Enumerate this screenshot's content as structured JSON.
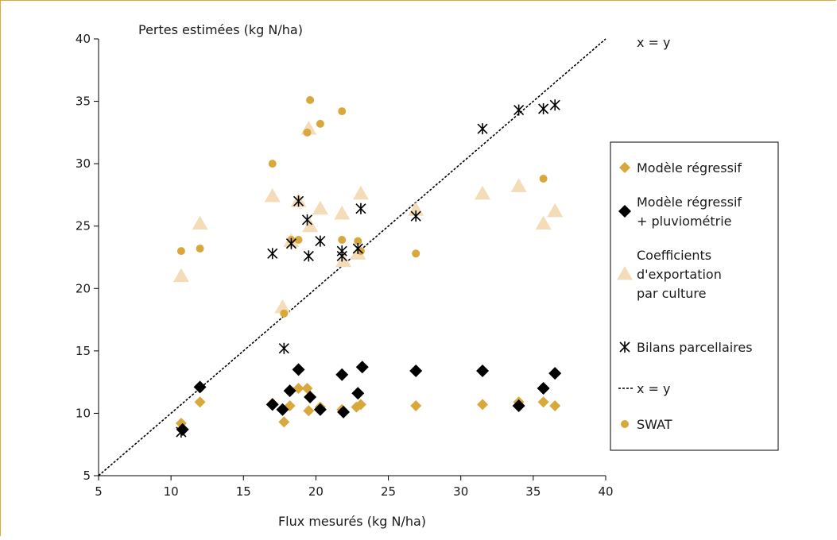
{
  "chart_data": {
    "type": "scatter",
    "ylabel": "Pertes estimées (kg N/ha)",
    "xlabel": "Flux mesurés (kg N/ha)",
    "diag_label": "x = y",
    "xlim": [
      5,
      40
    ],
    "ylim": [
      5,
      40
    ],
    "xticks": [
      5,
      10,
      15,
      20,
      25,
      30,
      35,
      40
    ],
    "yticks": [
      5,
      10,
      15,
      20,
      25,
      30,
      35,
      40
    ],
    "grid": false,
    "legend_position": "right",
    "colors": {
      "frame": "#e0a93a",
      "regressif": "#d9a83c",
      "pluvio": "#000000",
      "coeff": "#f3dcb7",
      "bilans": "#000000",
      "swat": "#d9a83c"
    },
    "series": [
      {
        "key": "regressif",
        "name": "Modèle régressif",
        "marker": "diamond",
        "points": [
          [
            10.7,
            9.2
          ],
          [
            12.0,
            10.9
          ],
          [
            17.0,
            10.8
          ],
          [
            17.8,
            9.3
          ],
          [
            18.2,
            10.6
          ],
          [
            18.8,
            12.0
          ],
          [
            19.4,
            12.0
          ],
          [
            19.5,
            10.2
          ],
          [
            20.3,
            10.5
          ],
          [
            21.8,
            10.3
          ],
          [
            22.8,
            10.5
          ],
          [
            23.1,
            10.7
          ],
          [
            26.9,
            10.6
          ],
          [
            31.5,
            10.7
          ],
          [
            34.0,
            10.9
          ],
          [
            35.7,
            10.9
          ],
          [
            36.5,
            10.6
          ]
        ]
      },
      {
        "key": "pluvio",
        "name": "Modèle régressif + pluviométrie",
        "marker": "diamond-large",
        "points": [
          [
            10.8,
            8.7
          ],
          [
            12.0,
            12.1
          ],
          [
            17.0,
            10.7
          ],
          [
            17.7,
            10.3
          ],
          [
            18.2,
            11.8
          ],
          [
            18.8,
            13.5
          ],
          [
            19.6,
            11.3
          ],
          [
            20.3,
            10.3
          ],
          [
            21.8,
            13.1
          ],
          [
            21.9,
            10.1
          ],
          [
            22.9,
            11.6
          ],
          [
            23.2,
            13.7
          ],
          [
            26.9,
            13.4
          ],
          [
            31.5,
            13.4
          ],
          [
            34.0,
            10.6
          ],
          [
            35.7,
            12.0
          ],
          [
            36.5,
            13.2
          ]
        ]
      },
      {
        "key": "coeff",
        "name": "Coefficients d'exportation par culture",
        "marker": "triangle",
        "points": [
          [
            10.7,
            21.0
          ],
          [
            12.0,
            25.2
          ],
          [
            17.0,
            27.4
          ],
          [
            17.7,
            18.5
          ],
          [
            18.3,
            23.8
          ],
          [
            18.8,
            27.0
          ],
          [
            19.5,
            32.8
          ],
          [
            19.6,
            25.0
          ],
          [
            20.3,
            26.4
          ],
          [
            21.8,
            26.0
          ],
          [
            21.9,
            22.2
          ],
          [
            22.9,
            22.8
          ],
          [
            23.1,
            27.6
          ],
          [
            26.9,
            26.3
          ],
          [
            31.5,
            27.6
          ],
          [
            34.0,
            28.2
          ],
          [
            35.7,
            25.2
          ],
          [
            36.5,
            26.2
          ]
        ]
      },
      {
        "key": "bilans",
        "name": "Bilans parcellaires",
        "marker": "star",
        "points": [
          [
            10.7,
            8.5
          ],
          [
            17.0,
            22.8
          ],
          [
            17.8,
            15.2
          ],
          [
            18.3,
            23.6
          ],
          [
            18.8,
            27.0
          ],
          [
            19.4,
            25.5
          ],
          [
            19.5,
            22.6
          ],
          [
            20.3,
            23.8
          ],
          [
            21.8,
            23.0
          ],
          [
            21.8,
            22.6
          ],
          [
            22.9,
            23.2
          ],
          [
            23.1,
            26.4
          ],
          [
            26.9,
            25.8
          ],
          [
            31.5,
            32.8
          ],
          [
            34.0,
            34.3
          ],
          [
            35.7,
            34.4
          ],
          [
            36.5,
            34.7
          ]
        ]
      },
      {
        "key": "swat",
        "name": "SWAT",
        "marker": "circle",
        "points": [
          [
            10.7,
            23.0
          ],
          [
            12.0,
            23.2
          ],
          [
            17.0,
            30.0
          ],
          [
            17.8,
            18.0
          ],
          [
            18.3,
            23.9
          ],
          [
            18.8,
            23.9
          ],
          [
            19.4,
            32.5
          ],
          [
            19.6,
            35.1
          ],
          [
            20.3,
            33.2
          ],
          [
            21.8,
            34.2
          ],
          [
            21.8,
            23.9
          ],
          [
            22.9,
            23.8
          ],
          [
            23.1,
            23.0
          ],
          [
            26.9,
            22.8
          ],
          [
            35.7,
            28.8
          ]
        ]
      }
    ],
    "legend": [
      {
        "key": "regressif",
        "lines": [
          "Modèle régressif"
        ]
      },
      {
        "key": "pluvio",
        "lines": [
          "Modèle régressif",
          "+ pluviométrie"
        ]
      },
      {
        "key": "coeff",
        "lines": [
          "Coefficients",
          "d'exportation",
          "par culture"
        ]
      },
      {
        "key": "bilans",
        "lines": [
          "Bilans parcellaires"
        ]
      },
      {
        "key": "diag",
        "lines": [
          "x = y"
        ]
      },
      {
        "key": "swat",
        "lines": [
          "SWAT"
        ]
      }
    ]
  }
}
